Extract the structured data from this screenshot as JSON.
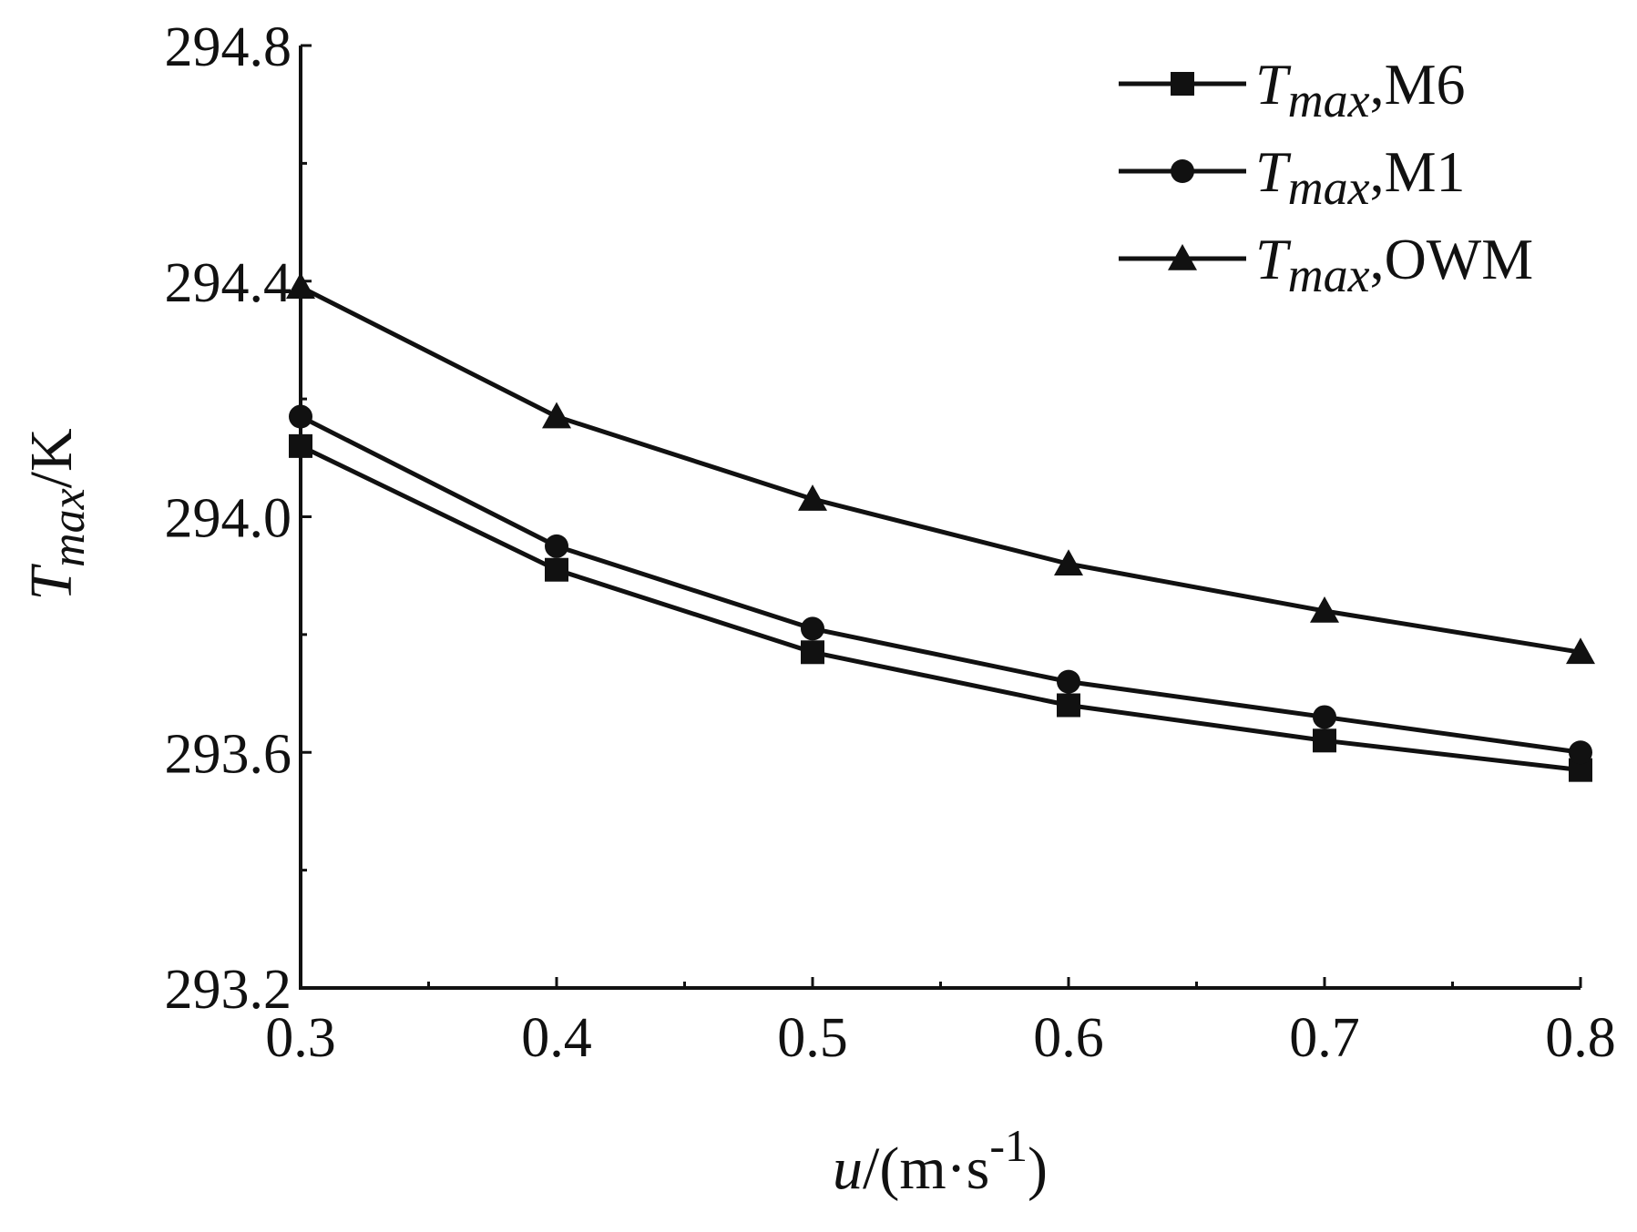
{
  "chart_data": {
    "type": "line",
    "x": [
      0.3,
      0.4,
      0.5,
      0.6,
      0.7,
      0.8
    ],
    "xlim": [
      0.3,
      0.8
    ],
    "ylim": [
      293.2,
      294.8
    ],
    "x_ticks": [
      "0.3",
      "0.4",
      "0.5",
      "0.6",
      "0.7",
      "0.8"
    ],
    "y_ticks": [
      "293.2",
      "293.6",
      "294.0",
      "294.4",
      "294.8"
    ],
    "x_tick_values": [
      0.3,
      0.4,
      0.5,
      0.6,
      0.7,
      0.8
    ],
    "y_tick_values": [
      293.2,
      293.6,
      294.0,
      294.4,
      294.8
    ],
    "x_minor_tick_values": [
      0.35,
      0.45,
      0.55,
      0.65,
      0.75
    ],
    "y_minor_tick_values": [
      293.4,
      293.8,
      294.2,
      294.6
    ],
    "xlabel": {
      "var": "u",
      "unit_prefix": "/(m·s",
      "sup": "-1",
      "unit_suffix": ")"
    },
    "ylabel": {
      "var": "T",
      "sub": "max",
      "unit": "/K"
    },
    "grid": false,
    "legend_position": "top-right",
    "series": [
      {
        "name": "Tmax,M6",
        "label_var": "T",
        "label_sub": "max",
        "label_suffix": ",M6",
        "marker": "square",
        "values": [
          294.12,
          293.91,
          293.77,
          293.68,
          293.62,
          293.57
        ]
      },
      {
        "name": "Tmax,M1",
        "label_var": "T",
        "label_sub": "max",
        "label_suffix": ",M1",
        "marker": "circle",
        "values": [
          294.17,
          293.95,
          293.81,
          293.72,
          293.66,
          293.6
        ]
      },
      {
        "name": "Tmax,OWM",
        "label_var": "T",
        "label_sub": "max",
        "label_suffix": ",OWM",
        "marker": "triangle",
        "values": [
          294.39,
          294.17,
          294.03,
          293.92,
          293.84,
          293.77
        ]
      }
    ],
    "colors": {
      "line": "#111111",
      "background": "#ffffff"
    }
  }
}
